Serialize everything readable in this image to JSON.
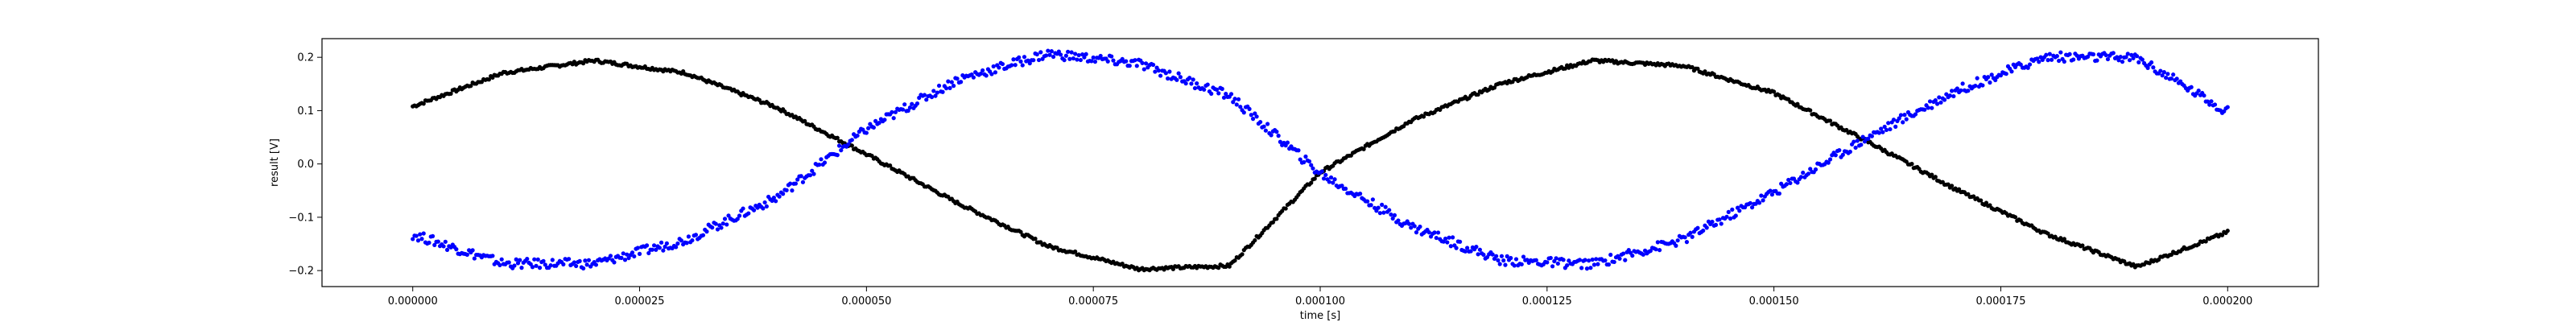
{
  "chart_data": {
    "type": "scatter",
    "title": "",
    "xlabel": "time [s]",
    "ylabel": "result [V]",
    "xlim": [
      -1e-05,
      0.00021
    ],
    "ylim": [
      -0.23,
      0.235
    ],
    "x_ticks": [
      0.0,
      2.5e-05,
      5e-05,
      7.5e-05,
      0.0001,
      0.000125,
      0.00015,
      0.000175,
      0.0002
    ],
    "x_tick_labels": [
      "0.000000",
      "0.000025",
      "0.000050",
      "0.000075",
      "0.000100",
      "0.000125",
      "0.000150",
      "0.000175",
      "0.000200"
    ],
    "y_ticks": [
      -0.2,
      -0.1,
      0.0,
      0.1,
      0.2
    ],
    "y_tick_labels": [
      "−0.2",
      "−0.1",
      "0.0",
      "0.1",
      "0.2"
    ],
    "grid": false,
    "legend": "none",
    "series": [
      {
        "color": "#000000",
        "x": [
          0.0,
          1e-05,
          2e-05,
          3e-05,
          4e-05,
          5e-05,
          6e-05,
          7e-05,
          8e-05,
          9e-05,
          0.0001,
          0.00011,
          0.00012,
          0.00013,
          0.00014,
          0.00015,
          0.00016,
          0.00017,
          0.00018,
          0.00019,
          0.0002
        ],
        "y": [
          0.108,
          0.171,
          0.194,
          0.171,
          0.107,
          0.018,
          -0.073,
          -0.154,
          -0.197,
          -0.191,
          -0.016,
          0.081,
          0.151,
          0.194,
          0.184,
          0.133,
          0.045,
          -0.047,
          -0.131,
          -0.193,
          -0.128
        ]
      },
      {
        "color": "#0000ff",
        "x": [
          0.0,
          1e-05,
          2e-05,
          3e-05,
          4e-05,
          5e-05,
          6e-05,
          7e-05,
          8e-05,
          9e-05,
          0.0001,
          0.00011,
          0.00012,
          0.00013,
          0.00014,
          0.00015,
          0.00016,
          0.00017,
          0.00018,
          0.00019,
          0.0002
        ],
        "y": [
          -0.132,
          -0.187,
          -0.187,
          -0.143,
          -0.064,
          0.065,
          0.158,
          0.207,
          0.188,
          0.128,
          -0.018,
          -0.117,
          -0.181,
          -0.188,
          -0.142,
          -0.053,
          0.047,
          0.137,
          0.201,
          0.199,
          0.098
        ]
      }
    ]
  }
}
